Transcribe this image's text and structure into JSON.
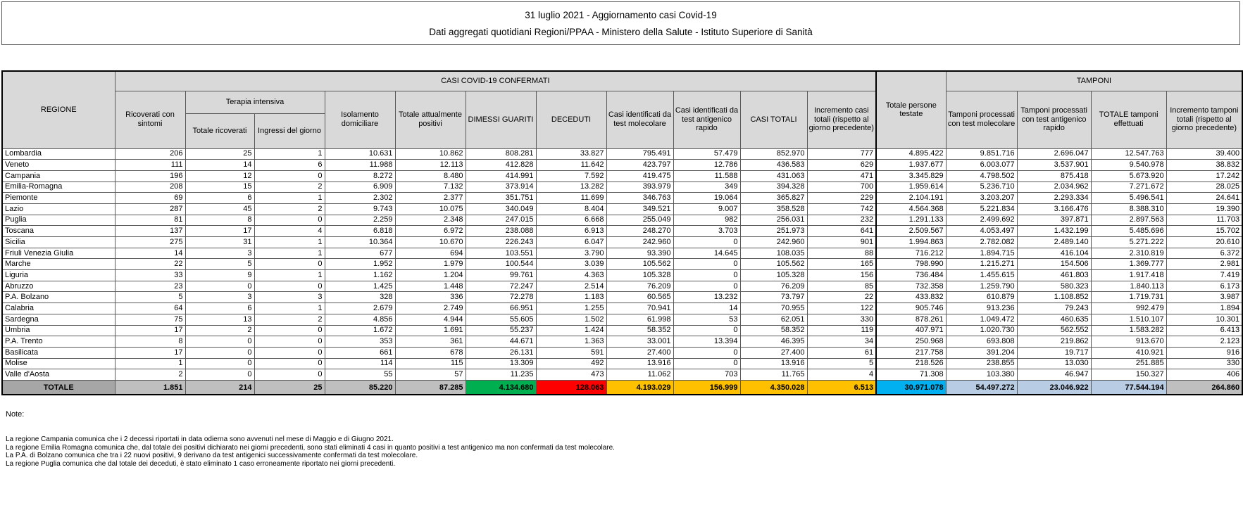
{
  "header": {
    "line1": "31 luglio 2021 - Aggiornamento casi Covid-19",
    "line2": "Dati aggregati quotidiani Regioni/PPAA - Ministero della Salute - Istituto Superiore di Sanità"
  },
  "table": {
    "group_casi": "CASI COVID-19 CONFERMATI",
    "group_tamponi": "TAMPONI",
    "group_terapia": "Terapia intensiva",
    "columns": [
      "REGIONE",
      "Ricoverati con sintomi",
      "Totale ricoverati",
      "Ingressi del giorno",
      "Isolamento domiciliare",
      "Totale attualmente positivi",
      "DIMESSI GUARITI",
      "DECEDUTI",
      "Casi identificati da test molecolare",
      "Casi identificati da test antigenico rapido",
      "CASI TOTALI",
      "Incremento casi totali (rispetto al giorno precedente)",
      "Totale persone testate",
      "Tamponi processati con test molecolare",
      "Tamponi processati con test antigenico rapido",
      "TOTALE tamponi effettuati",
      "Incremento tamponi totali (rispetto al giorno precedente)"
    ],
    "rows": [
      [
        "Lombardia",
        "206",
        "25",
        "1",
        "10.631",
        "10.862",
        "808.281",
        "33.827",
        "795.491",
        "57.479",
        "852.970",
        "777",
        "4.895.422",
        "9.851.716",
        "2.696.047",
        "12.547.763",
        "39.400"
      ],
      [
        "Veneto",
        "111",
        "14",
        "6",
        "11.988",
        "12.113",
        "412.828",
        "11.642",
        "423.797",
        "12.786",
        "436.583",
        "629",
        "1.937.677",
        "6.003.077",
        "3.537.901",
        "9.540.978",
        "38.832"
      ],
      [
        "Campania",
        "196",
        "12",
        "0",
        "8.272",
        "8.480",
        "414.991",
        "7.592",
        "419.475",
        "11.588",
        "431.063",
        "471",
        "3.345.829",
        "4.798.502",
        "875.418",
        "5.673.920",
        "17.242"
      ],
      [
        "Emilia-Romagna",
        "208",
        "15",
        "2",
        "6.909",
        "7.132",
        "373.914",
        "13.282",
        "393.979",
        "349",
        "394.328",
        "700",
        "1.959.614",
        "5.236.710",
        "2.034.962",
        "7.271.672",
        "28.025"
      ],
      [
        "Piemonte",
        "69",
        "6",
        "1",
        "2.302",
        "2.377",
        "351.751",
        "11.699",
        "346.763",
        "19.064",
        "365.827",
        "229",
        "2.104.191",
        "3.203.207",
        "2.293.334",
        "5.496.541",
        "24.641"
      ],
      [
        "Lazio",
        "287",
        "45",
        "2",
        "9.743",
        "10.075",
        "340.049",
        "8.404",
        "349.521",
        "9.007",
        "358.528",
        "742",
        "4.564.368",
        "5.221.834",
        "3.166.476",
        "8.388.310",
        "19.390"
      ],
      [
        "Puglia",
        "81",
        "8",
        "0",
        "2.259",
        "2.348",
        "247.015",
        "6.668",
        "255.049",
        "982",
        "256.031",
        "232",
        "1.291.133",
        "2.499.692",
        "397.871",
        "2.897.563",
        "11.703"
      ],
      [
        "Toscana",
        "137",
        "17",
        "4",
        "6.818",
        "6.972",
        "238.088",
        "6.913",
        "248.270",
        "3.703",
        "251.973",
        "641",
        "2.509.567",
        "4.053.497",
        "1.432.199",
        "5.485.696",
        "15.702"
      ],
      [
        "Sicilia",
        "275",
        "31",
        "1",
        "10.364",
        "10.670",
        "226.243",
        "6.047",
        "242.960",
        "0",
        "242.960",
        "901",
        "1.994.863",
        "2.782.082",
        "2.489.140",
        "5.271.222",
        "20.610"
      ],
      [
        "Friuli Venezia Giulia",
        "14",
        "3",
        "1",
        "677",
        "694",
        "103.551",
        "3.790",
        "93.390",
        "14.645",
        "108.035",
        "88",
        "716.212",
        "1.894.715",
        "416.104",
        "2.310.819",
        "6.372"
      ],
      [
        "Marche",
        "22",
        "5",
        "0",
        "1.952",
        "1.979",
        "100.544",
        "3.039",
        "105.562",
        "0",
        "105.562",
        "165",
        "798.990",
        "1.215.271",
        "154.506",
        "1.369.777",
        "2.981"
      ],
      [
        "Liguria",
        "33",
        "9",
        "1",
        "1.162",
        "1.204",
        "99.761",
        "4.363",
        "105.328",
        "0",
        "105.328",
        "156",
        "736.484",
        "1.455.615",
        "461.803",
        "1.917.418",
        "7.419"
      ],
      [
        "Abruzzo",
        "23",
        "0",
        "0",
        "1.425",
        "1.448",
        "72.247",
        "2.514",
        "76.209",
        "0",
        "76.209",
        "85",
        "732.358",
        "1.259.790",
        "580.323",
        "1.840.113",
        "6.173"
      ],
      [
        "P.A. Bolzano",
        "5",
        "3",
        "3",
        "328",
        "336",
        "72.278",
        "1.183",
        "60.565",
        "13.232",
        "73.797",
        "22",
        "433.832",
        "610.879",
        "1.108.852",
        "1.719.731",
        "3.987"
      ],
      [
        "Calabria",
        "64",
        "6",
        "1",
        "2.679",
        "2.749",
        "66.951",
        "1.255",
        "70.941",
        "14",
        "70.955",
        "122",
        "905.746",
        "913.236",
        "79.243",
        "992.479",
        "1.894"
      ],
      [
        "Sardegna",
        "75",
        "13",
        "2",
        "4.856",
        "4.944",
        "55.605",
        "1.502",
        "61.998",
        "53",
        "62.051",
        "330",
        "878.261",
        "1.049.472",
        "460.635",
        "1.510.107",
        "10.301"
      ],
      [
        "Umbria",
        "17",
        "2",
        "0",
        "1.672",
        "1.691",
        "55.237",
        "1.424",
        "58.352",
        "0",
        "58.352",
        "119",
        "407.971",
        "1.020.730",
        "562.552",
        "1.583.282",
        "6.413"
      ],
      [
        "P.A. Trento",
        "8",
        "0",
        "0",
        "353",
        "361",
        "44.671",
        "1.363",
        "33.001",
        "13.394",
        "46.395",
        "34",
        "250.968",
        "693.808",
        "219.862",
        "913.670",
        "2.123"
      ],
      [
        "Basilicata",
        "17",
        "0",
        "0",
        "661",
        "678",
        "26.131",
        "591",
        "27.400",
        "0",
        "27.400",
        "61",
        "217.758",
        "391.204",
        "19.717",
        "410.921",
        "916"
      ],
      [
        "Molise",
        "1",
        "0",
        "0",
        "114",
        "115",
        "13.309",
        "492",
        "13.916",
        "0",
        "13.916",
        "5",
        "218.526",
        "238.855",
        "13.030",
        "251.885",
        "330"
      ],
      [
        "Valle d'Aosta",
        "2",
        "0",
        "0",
        "55",
        "57",
        "11.235",
        "473",
        "11.062",
        "703",
        "11.765",
        "4",
        "71.308",
        "103.380",
        "46.947",
        "150.327",
        "406"
      ]
    ],
    "totale": [
      "TOTALE",
      "1.851",
      "214",
      "25",
      "85.220",
      "87.285",
      "4.134.680",
      "128.063",
      "4.193.029",
      "156.999",
      "4.350.028",
      "6.513",
      "30.971.078",
      "54.497.272",
      "23.046.922",
      "77.544.194",
      "264.860"
    ]
  },
  "notes": {
    "title": "Note:",
    "lines": [
      "La regione Campania comunica che i 2 decessi riportati in data odierna sono avvenuti nel mese di Maggio e di Giugno 2021.",
      "La regione Emilia Romagna comunica che, dal totale dei positivi dichiarato nei giorni precedenti, sono stati eliminati 4 casi in quanto positivi a test antigenico ma non confermati da test molecolare.",
      "La P.A. di Bolzano comunica che tra i 22 nuovi positivi, 9 derivano da test antigenici successivamente confermati da test molecolare.",
      "La regione Puglia comunica che dal totale dei deceduti, è stato eliminato 1 caso erroneamente riportato nei giorni precedenti."
    ]
  },
  "colors": {
    "green": "#00b050",
    "red": "#ff0000",
    "amber": "#ffc000",
    "cyan": "#00b0f0",
    "light_blue": "#b8cce4",
    "header_gray": "#d9d9d9",
    "region_gray": "#a6a6a6",
    "total_gray": "#bfbfbf"
  }
}
